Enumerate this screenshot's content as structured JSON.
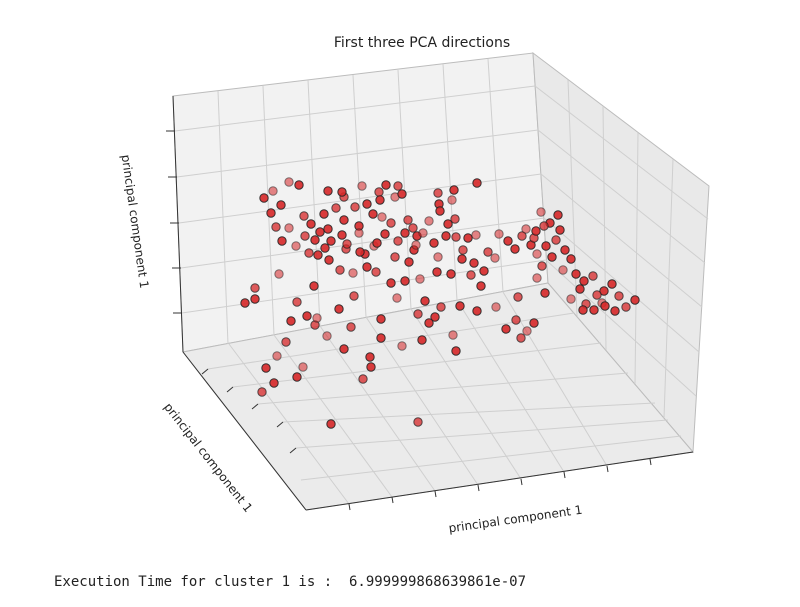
{
  "chart_data": {
    "type": "scatter3d",
    "title": "First three PCA directions",
    "xlabel": "principal component 1",
    "ylabel": "principal component 1",
    "zlabel": "principal component 1",
    "grid": true,
    "tick_labels": "none",
    "marker_color": "#d62728",
    "marker_edge_color": "#222222",
    "points": [
      [
        6.9,
        8.3
      ],
      [
        7.9,
        8.0
      ],
      [
        10.8,
        7.4
      ],
      [
        12.4,
        6.8
      ],
      [
        12.2,
        7.3
      ],
      [
        14.2,
        7.9
      ],
      [
        15.9,
        7.3
      ],
      [
        16.0,
        6.5
      ],
      [
        16.6,
        8.0
      ],
      [
        17.8,
        7.9
      ],
      [
        17.5,
        6.8
      ],
      [
        18.2,
        7.1
      ],
      [
        21.8,
        7.2
      ],
      [
        23.4,
        7.5
      ],
      [
        25.7,
        8.2
      ],
      [
        23.2,
        6.5
      ],
      [
        21.9,
        6.1
      ],
      [
        22.0,
        5.4
      ],
      [
        23.5,
        4.6
      ],
      [
        22.8,
        4.1
      ],
      [
        20.9,
        4.4
      ],
      [
        19.3,
        3.7
      ],
      [
        19.7,
        2.9
      ],
      [
        18.5,
        3.2
      ],
      [
        17.1,
        4.2
      ],
      [
        16.2,
        4.8
      ],
      [
        15.3,
        5.1
      ],
      [
        13.5,
        5.8
      ],
      [
        14.7,
        6.1
      ],
      [
        13.9,
        3.9
      ],
      [
        13.9,
        3.2
      ],
      [
        12.2,
        3.0
      ],
      [
        10.8,
        3.6
      ],
      [
        8.4,
        4.9
      ],
      [
        6.1,
        6.0
      ],
      [
        6.9,
        3.7
      ],
      [
        8.5,
        2.9
      ],
      [
        9.5,
        2.5
      ],
      [
        10.5,
        1.7
      ],
      [
        12.6,
        1.6
      ],
      [
        15.4,
        1.9
      ],
      [
        14.5,
        1.1
      ],
      [
        17.5,
        0.8
      ],
      [
        19.4,
        1.5
      ],
      [
        18.9,
        0.3
      ],
      [
        21.8,
        0.8
      ],
      [
        21.4,
        2.2
      ],
      [
        22.6,
        2.9
      ],
      [
        23.6,
        2.8
      ],
      [
        24.8,
        2.7
      ],
      [
        25.6,
        3.0
      ],
      [
        24.3,
        1.5
      ],
      [
        24.2,
        0.6
      ],
      [
        25.4,
        0.2
      ],
      [
        26.8,
        1.3
      ],
      [
        27.5,
        0.7
      ],
      [
        26.4,
        -0.6
      ],
      [
        25.1,
        -1.0
      ],
      [
        23.1,
        -0.9
      ],
      [
        21.7,
        -0.7
      ],
      [
        20.0,
        -1.4
      ],
      [
        18.5,
        -1.6
      ],
      [
        17.1,
        -1.8
      ],
      [
        15.6,
        -0.7
      ],
      [
        14.7,
        -0.2
      ],
      [
        13.3,
        -0.8
      ],
      [
        12.0,
        -0.5
      ],
      [
        10.9,
        0.5
      ],
      [
        9.8,
        1.0
      ],
      [
        8.9,
        1.2
      ],
      [
        7.6,
        1.9
      ],
      [
        6.2,
        2.4
      ],
      [
        5.6,
        3.8
      ],
      [
        5.1,
        5.2
      ],
      [
        4.4,
        6.7
      ],
      [
        5.3,
        7.4
      ],
      [
        9.1,
        4.1
      ],
      [
        10.4,
        5.1
      ],
      [
        11.6,
        5.7
      ],
      [
        12.4,
        4.5
      ],
      [
        20.3,
        3.2
      ],
      [
        18.8,
        4.5
      ],
      [
        16.5,
        3.1
      ],
      [
        15.7,
        2.2
      ],
      [
        17.8,
        2.4
      ],
      [
        19.6,
        2.0
      ],
      [
        14.0,
        1.3
      ],
      [
        12.7,
        2.1
      ],
      [
        11.1,
        2.4
      ],
      [
        10.0,
        3.3
      ],
      [
        27.9,
        3.1
      ],
      [
        28.8,
        2.4
      ],
      [
        29.5,
        1.6
      ],
      [
        30.2,
        2.9
      ],
      [
        31.1,
        2.0
      ],
      [
        31.7,
        1.1
      ],
      [
        32.2,
        -0.1
      ],
      [
        33.2,
        0.8
      ],
      [
        32.6,
        1.9
      ],
      [
        31.4,
        2.7
      ],
      [
        30.6,
        3.6
      ],
      [
        31.6,
        3.4
      ],
      [
        33.6,
        2.5
      ],
      [
        34.5,
        1.5
      ],
      [
        35.1,
        0.6
      ],
      [
        34.3,
        -0.5
      ],
      [
        35.6,
        -0.9
      ],
      [
        36.4,
        -1.6
      ],
      [
        37.3,
        -1.1
      ],
      [
        36.0,
        -2.4
      ],
      [
        35.1,
        -3.4
      ],
      [
        36.6,
        -3.9
      ],
      [
        38.4,
        -2.6
      ],
      [
        39.2,
        -1.9
      ],
      [
        39.9,
        -3.1
      ],
      [
        38.2,
        -3.8
      ],
      [
        37.4,
        -4.5
      ],
      [
        40.6,
        -4.2
      ],
      [
        41.5,
        -3.5
      ],
      [
        39.5,
        -4.6
      ],
      [
        32.1,
        5.3
      ],
      [
        33.0,
        4.2
      ],
      [
        33.8,
        5.0
      ],
      [
        32.4,
        3.9
      ],
      [
        34.0,
        3.5
      ],
      [
        31.7,
        -1.3
      ],
      [
        29.8,
        -3.2
      ],
      [
        32.5,
        -2.8
      ],
      [
        28.6,
        -6.4
      ],
      [
        29.6,
        -5.5
      ],
      [
        30.7,
        -6.6
      ],
      [
        31.4,
        -5.8
      ],
      [
        30.1,
        -7.3
      ],
      [
        21.5,
        -5.2
      ],
      [
        20.2,
        -7.5
      ],
      [
        18.2,
        -8.1
      ],
      [
        16.1,
        -7.3
      ],
      [
        15.1,
        -10.2
      ],
      [
        14.3,
        -11.4
      ],
      [
        12.4,
        -8.4
      ],
      [
        10.7,
        -7.1
      ],
      [
        9.5,
        -6.0
      ],
      [
        8.7,
        -5.1
      ],
      [
        7.1,
        -5.6
      ],
      [
        6.6,
        -7.7
      ],
      [
        5.7,
        -9.1
      ],
      [
        4.6,
        -10.3
      ],
      [
        4.2,
        -12.7
      ],
      [
        5.4,
        -11.8
      ],
      [
        7.7,
        -11.2
      ],
      [
        8.3,
        -10.2
      ],
      [
        23.6,
        -8.6
      ],
      [
        11.1,
        -15.9
      ],
      [
        19.8,
        -15.7
      ],
      [
        15.0,
        -9.2
      ],
      [
        23.3,
        -7.0
      ],
      [
        3.5,
        -2.3
      ],
      [
        2.5,
        -3.8
      ],
      [
        9.4,
        -2.1
      ],
      [
        13.4,
        -3.1
      ],
      [
        17.7,
        -3.3
      ],
      [
        20.5,
        -3.6
      ],
      [
        22.1,
        -4.2
      ],
      [
        24.0,
        -4.1
      ],
      [
        25.7,
        -4.6
      ],
      [
        27.6,
        -4.2
      ],
      [
        26.1,
        -2.1
      ],
      [
        11.9,
        -4.4
      ],
      [
        7.7,
        -3.7
      ],
      [
        3.5,
        -3.4
      ],
      [
        5.9,
        -0.9
      ],
      [
        19.8,
        -4.9
      ],
      [
        20.9,
        -5.8
      ],
      [
        16.1,
        -5.4
      ],
      [
        13.1,
        -6.2
      ],
      [
        9.7,
        -5.3
      ],
      [
        36.3,
        -4.5
      ],
      [
        37.7,
        -3.0
      ],
      [
        38.5,
        -4.1
      ]
    ]
  },
  "footer": {
    "exec_text": "Execution Time for cluster 1 is :  6.999999868639861e-07"
  }
}
